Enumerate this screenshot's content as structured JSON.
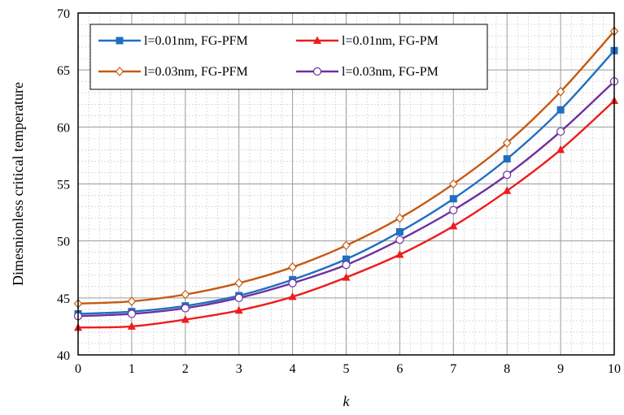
{
  "chart_data": {
    "type": "line",
    "xlabel": "k",
    "ylabel": "Dimesnionless critical temperature",
    "xlim": [
      0,
      10
    ],
    "ylim": [
      40,
      70
    ],
    "x_ticks": [
      0,
      1,
      2,
      3,
      4,
      5,
      6,
      7,
      8,
      9,
      10
    ],
    "y_ticks": [
      40,
      45,
      50,
      55,
      60,
      65,
      70
    ],
    "grid": true,
    "legend_position": "top-left, two columns",
    "x": [
      0,
      1,
      2,
      3,
      4,
      5,
      6,
      7,
      8,
      9,
      10
    ],
    "series": [
      {
        "name": "l=0.01nm, FG-PFM",
        "color": "#1f6fbf",
        "marker": "square",
        "values": [
          43.6,
          43.8,
          44.3,
          45.2,
          46.6,
          48.4,
          50.8,
          53.7,
          57.2,
          61.5,
          66.7
        ]
      },
      {
        "name": "l=0.01nm, FG-PM",
        "color": "#ee1c1c",
        "marker": "triangle",
        "values": [
          42.4,
          42.5,
          43.1,
          43.9,
          45.1,
          46.8,
          48.8,
          51.3,
          54.4,
          58.0,
          62.3
        ]
      },
      {
        "name": "l=0.03nm, FG-PFM",
        "color": "#c55a11",
        "marker": "diamond-open",
        "values": [
          44.5,
          44.7,
          45.3,
          46.3,
          47.7,
          49.6,
          52.0,
          55.0,
          58.6,
          63.1,
          68.4
        ]
      },
      {
        "name": "l=0.03nm, FG-PM",
        "color": "#7030a0",
        "marker": "circle-open",
        "values": [
          43.4,
          43.6,
          44.1,
          45.0,
          46.3,
          47.9,
          50.1,
          52.7,
          55.8,
          59.6,
          64.0
        ]
      }
    ]
  }
}
